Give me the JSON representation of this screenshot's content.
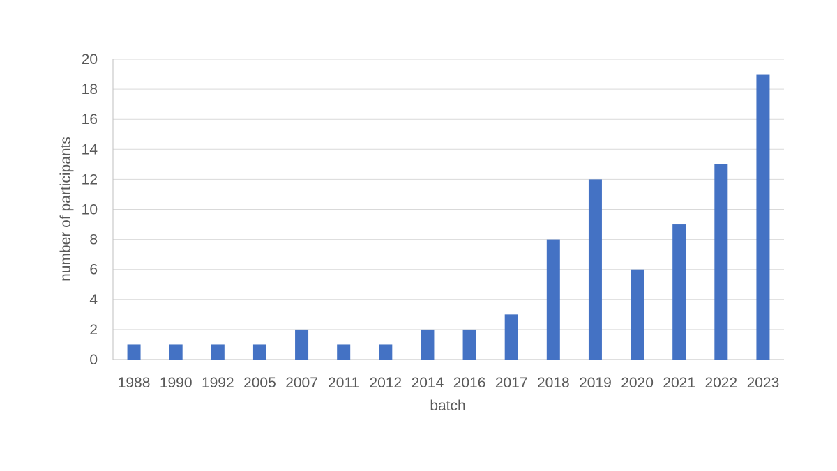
{
  "chart_data": {
    "type": "bar",
    "categories": [
      "1988",
      "1990",
      "1992",
      "2005",
      "2007",
      "2011",
      "2012",
      "2014",
      "2016",
      "2017",
      "2018",
      "2019",
      "2020",
      "2021",
      "2022",
      "2023"
    ],
    "series": [
      {
        "values": [
          1,
          1,
          1,
          1,
          2,
          1,
          1,
          2,
          2,
          3,
          8,
          12,
          6,
          9,
          13,
          19
        ]
      }
    ],
    "xlabel": "batch",
    "ylabel": "number of participants",
    "ylim": [
      0,
      20
    ],
    "yticks": [
      0,
      2,
      4,
      6,
      8,
      10,
      12,
      14,
      16,
      18,
      20
    ],
    "grid": true,
    "legend": "none",
    "bar_color": "#4472c4"
  }
}
